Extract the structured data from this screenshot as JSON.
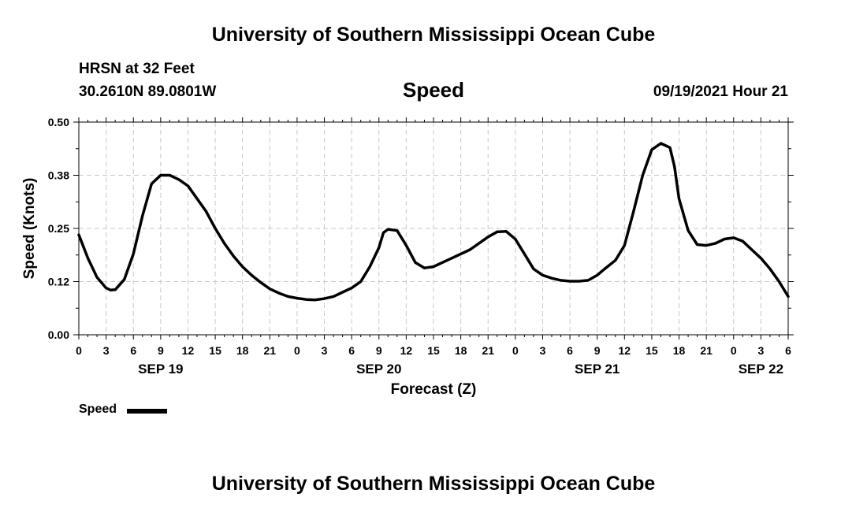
{
  "header": {
    "title": "University of Southern Mississippi Ocean Cube",
    "station": "HRSN at 32 Feet",
    "coords": "30.2610N  89.0801W",
    "plot_title": "Speed",
    "datetime": "09/19/2021 Hour 21"
  },
  "footer": {
    "title": "University of Southern Mississippi Ocean Cube"
  },
  "chart_data": {
    "type": "line",
    "title": "Speed",
    "xlabel": "Forecast (Z)",
    "ylabel": "Speed (Knots)",
    "ylim": [
      0,
      0.5
    ],
    "y_ticks": [
      "0.00",
      "0.12",
      "0.25",
      "0.38",
      "0.50"
    ],
    "x_range_hours": [
      0,
      78
    ],
    "x_ticks": [
      "0",
      "3",
      "6",
      "9",
      "12",
      "15",
      "18",
      "21",
      "0",
      "3",
      "6",
      "9",
      "12",
      "15",
      "18",
      "21",
      "0",
      "3",
      "6",
      "9",
      "12",
      "15",
      "18",
      "21",
      "0",
      "3",
      "6"
    ],
    "date_labels": [
      {
        "hour": 9,
        "label": "SEP 19"
      },
      {
        "hour": 33,
        "label": "SEP 20"
      },
      {
        "hour": 57,
        "label": "SEP 21"
      },
      {
        "hour": 75,
        "label": "SEP 22"
      }
    ],
    "grid": true,
    "legend": "bottom-left",
    "series": [
      {
        "name": "Speed",
        "color": "#000000",
        "x": [
          0,
          1,
          2,
          3,
          3.5,
          4,
          5,
          6,
          7,
          8,
          9,
          10,
          11,
          12,
          13,
          14,
          15,
          16,
          17,
          18,
          19,
          20,
          21,
          22,
          23,
          24,
          25,
          26,
          27,
          28,
          29,
          30,
          31,
          32,
          33,
          33.5,
          34,
          35,
          36,
          37,
          38,
          39,
          40,
          41,
          42,
          43,
          44,
          45,
          46,
          47,
          48,
          49,
          50,
          51,
          52,
          53,
          54,
          55,
          56,
          57,
          58,
          59,
          60,
          61,
          62,
          63,
          64,
          65,
          65.5,
          66,
          67,
          68,
          69,
          70,
          71,
          72,
          73,
          74,
          75,
          76,
          77,
          78
        ],
        "values": [
          0.235,
          0.18,
          0.135,
          0.11,
          0.105,
          0.106,
          0.13,
          0.19,
          0.28,
          0.355,
          0.375,
          0.375,
          0.365,
          0.35,
          0.32,
          0.29,
          0.25,
          0.215,
          0.185,
          0.16,
          0.14,
          0.123,
          0.108,
          0.098,
          0.09,
          0.086,
          0.083,
          0.082,
          0.085,
          0.09,
          0.1,
          0.11,
          0.125,
          0.16,
          0.205,
          0.24,
          0.248,
          0.245,
          0.21,
          0.17,
          0.157,
          0.16,
          0.17,
          0.18,
          0.19,
          0.2,
          0.215,
          0.23,
          0.242,
          0.243,
          0.225,
          0.19,
          0.155,
          0.14,
          0.133,
          0.128,
          0.126,
          0.126,
          0.128,
          0.14,
          0.158,
          0.175,
          0.21,
          0.29,
          0.375,
          0.435,
          0.45,
          0.44,
          0.395,
          0.32,
          0.245,
          0.212,
          0.21,
          0.215,
          0.225,
          0.228,
          0.22,
          0.2,
          0.18,
          0.155,
          0.125,
          0.09
        ]
      }
    ]
  }
}
